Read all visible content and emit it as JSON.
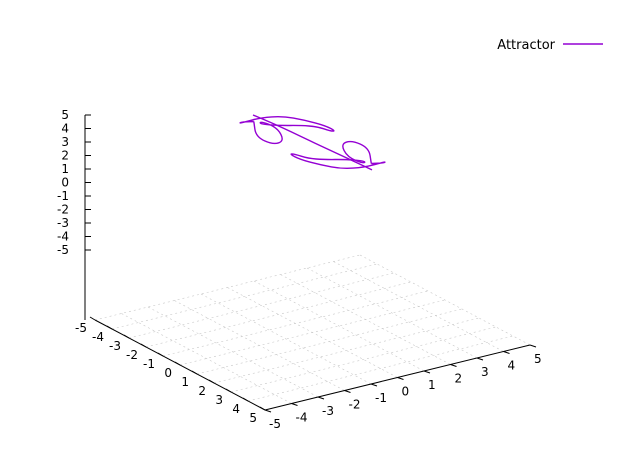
{
  "chart_data": {
    "type": "line",
    "projection": "3d",
    "title": "",
    "xlabel": "",
    "ylabel": "",
    "zlabel": "",
    "xlim": [
      -5,
      5
    ],
    "ylim": [
      -5,
      5
    ],
    "zlim": [
      -5,
      5
    ],
    "x_ticks": [
      "-5",
      "-4",
      "-3",
      "-2",
      "-1",
      "0",
      "1",
      "2",
      "3",
      "4",
      "5"
    ],
    "y_ticks": [
      "-5",
      "-4",
      "-3",
      "-2",
      "-1",
      "0",
      "1",
      "2",
      "3",
      "4",
      "5"
    ],
    "z_ticks": [
      "5",
      "4",
      "3",
      "2",
      "1",
      "0",
      "-1",
      "-2",
      "-3",
      "-4",
      "-5"
    ],
    "grid": true,
    "legend_position": "top-right",
    "series": [
      {
        "name": "Attractor",
        "color": "#9400d3",
        "points": [
          [
            -3.3,
            -0.1,
            -0.6
          ],
          [
            -3.0,
            -0.8,
            -0.1
          ],
          [
            -2.4,
            -1.2,
            0.4
          ],
          [
            -1.8,
            -1.4,
            1.0
          ],
          [
            -1.0,
            -1.3,
            1.8
          ],
          [
            -0.2,
            -1.0,
            2.3
          ],
          [
            0.6,
            -0.7,
            2.4
          ],
          [
            1.2,
            -0.3,
            2.2
          ],
          [
            1.2,
            0.1,
            1.6
          ],
          [
            0.6,
            0.3,
            1.1
          ],
          [
            -0.2,
            0.3,
            0.9
          ],
          [
            -1.0,
            0.2,
            0.5
          ],
          [
            -1.8,
            -0.1,
            0.1
          ],
          [
            -2.8,
            -0.2,
            -0.4
          ],
          [
            -3.5,
            0.3,
            -0.9
          ],
          [
            -3.3,
            0.8,
            -1.5
          ],
          [
            -2.6,
            0.6,
            -1.9
          ],
          [
            -2.3,
            0.0,
            -1.7
          ],
          [
            -2.7,
            -0.4,
            -1.2
          ],
          [
            -3.3,
            -0.1,
            -0.6
          ]
        ]
      },
      {
        "name": "",
        "color": "#9400d3",
        "points": [
          [
            3.3,
            0.1,
            0.6
          ],
          [
            3.0,
            0.8,
            0.1
          ],
          [
            2.4,
            1.2,
            -0.4
          ],
          [
            1.8,
            1.4,
            -1.0
          ],
          [
            1.0,
            1.3,
            -1.8
          ],
          [
            0.2,
            1.0,
            -2.3
          ],
          [
            -0.6,
            0.7,
            -2.4
          ],
          [
            -1.2,
            0.3,
            -2.2
          ],
          [
            -1.2,
            -0.1,
            -1.6
          ],
          [
            -0.6,
            -0.3,
            -1.1
          ],
          [
            0.2,
            -0.3,
            -0.9
          ],
          [
            1.0,
            -0.2,
            -0.5
          ],
          [
            1.8,
            0.1,
            -0.1
          ],
          [
            2.8,
            0.2,
            0.4
          ],
          [
            3.5,
            -0.3,
            0.9
          ],
          [
            3.3,
            -0.8,
            1.5
          ],
          [
            2.6,
            -0.6,
            1.9
          ],
          [
            2.3,
            0.0,
            1.7
          ],
          [
            2.7,
            0.4,
            1.2
          ],
          [
            3.3,
            0.1,
            0.6
          ]
        ]
      },
      {
        "name": "",
        "color": "#9400d3",
        "points": [
          [
            -3.5,
            0.0,
            -0.3
          ],
          [
            -2.0,
            0.0,
            -0.1
          ],
          [
            -0.5,
            0.0,
            0.0
          ],
          [
            0.8,
            0.0,
            0.1
          ],
          [
            2.0,
            0.0,
            0.2
          ],
          [
            3.5,
            0.0,
            0.3
          ]
        ]
      }
    ]
  },
  "legend": {
    "entries": [
      {
        "label": "Attractor",
        "color": "#9400d3"
      }
    ]
  }
}
